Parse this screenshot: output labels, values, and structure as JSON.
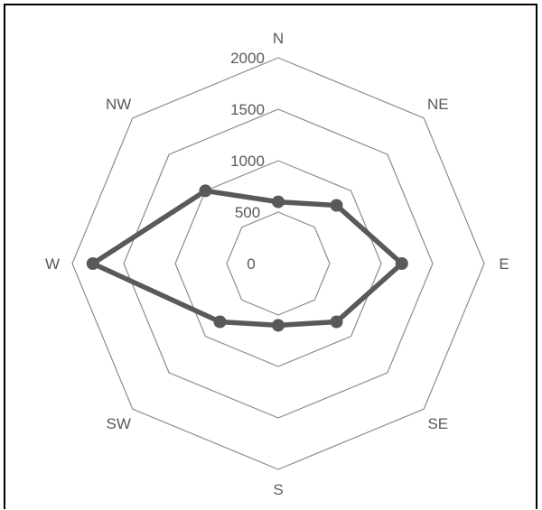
{
  "chart_data": {
    "type": "radar",
    "categories": [
      "N",
      "NE",
      "E",
      "SE",
      "S",
      "SW",
      "W",
      "NW"
    ],
    "values": [
      600,
      800,
      1200,
      800,
      600,
      800,
      1800,
      1000
    ],
    "axis": {
      "min": 0,
      "max": 2000,
      "ticks": [
        0,
        500,
        1000,
        1500,
        2000
      ],
      "tick_labels": [
        "0",
        "500",
        "1000",
        "1500",
        "2000"
      ]
    },
    "grid": true,
    "legend": "none",
    "colors": {
      "series": "#595959",
      "grid": "#8c8c8c",
      "text": "#595959"
    }
  }
}
